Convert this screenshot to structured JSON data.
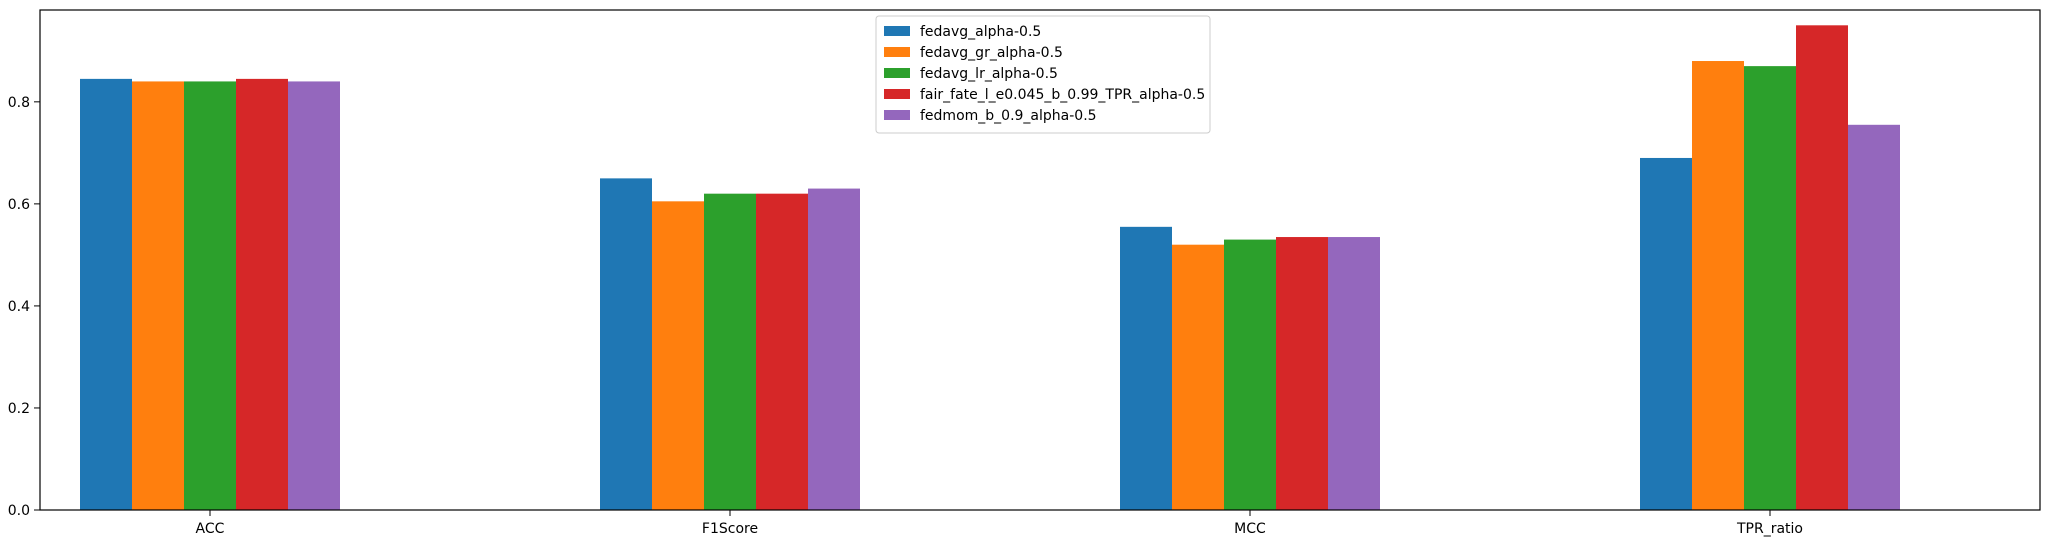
{
  "chart_data": {
    "type": "bar",
    "title": "",
    "xlabel": "",
    "ylabel": "",
    "categories": [
      "ACC",
      "F1Score",
      "MCC",
      "TPR_ratio"
    ],
    "ylim": [
      0,
      0.98
    ],
    "yticks": [
      "0.0",
      "0.2",
      "0.4",
      "0.6",
      "0.8"
    ],
    "grid": false,
    "legend_position": "top-center",
    "series": [
      {
        "name": "fedavg_alpha-0.5",
        "color": "#1f77b4",
        "values": [
          0.845,
          0.65,
          0.555,
          0.69
        ]
      },
      {
        "name": "fedavg_gr_alpha-0.5",
        "color": "#ff7f0e",
        "values": [
          0.84,
          0.605,
          0.52,
          0.88
        ]
      },
      {
        "name": "fedavg_lr_alpha-0.5",
        "color": "#2ca02c",
        "values": [
          0.84,
          0.62,
          0.53,
          0.87
        ]
      },
      {
        "name": "fair_fate_l_e0.045_b_0.99_TPR_alpha-0.5",
        "color": "#d62728",
        "values": [
          0.845,
          0.62,
          0.535,
          0.95
        ]
      },
      {
        "name": "fedmom_b_0.9_alpha-0.5",
        "color": "#9467bd",
        "values": [
          0.84,
          0.63,
          0.535,
          0.755
        ]
      }
    ]
  }
}
